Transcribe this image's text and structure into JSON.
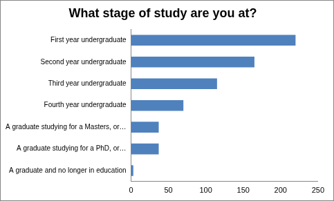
{
  "chart_data": {
    "type": "bar",
    "title": "What stage of study are you at?",
    "orientation": "horizontal",
    "categories": [
      "First year undergraduate",
      "Second year undergraduate",
      "Third year undergraduate",
      "Fourth year undergraduate",
      "A graduate studying for a Masters, or…",
      "A graduate studying for a PhD, or…",
      "A graduate and no longer in education"
    ],
    "values": [
      220,
      165,
      115,
      70,
      37,
      37,
      3
    ],
    "color": "#4f81bd",
    "xlim": [
      0,
      250
    ],
    "xticks": [
      0,
      50,
      100,
      150,
      200,
      250
    ],
    "grid": false
  }
}
